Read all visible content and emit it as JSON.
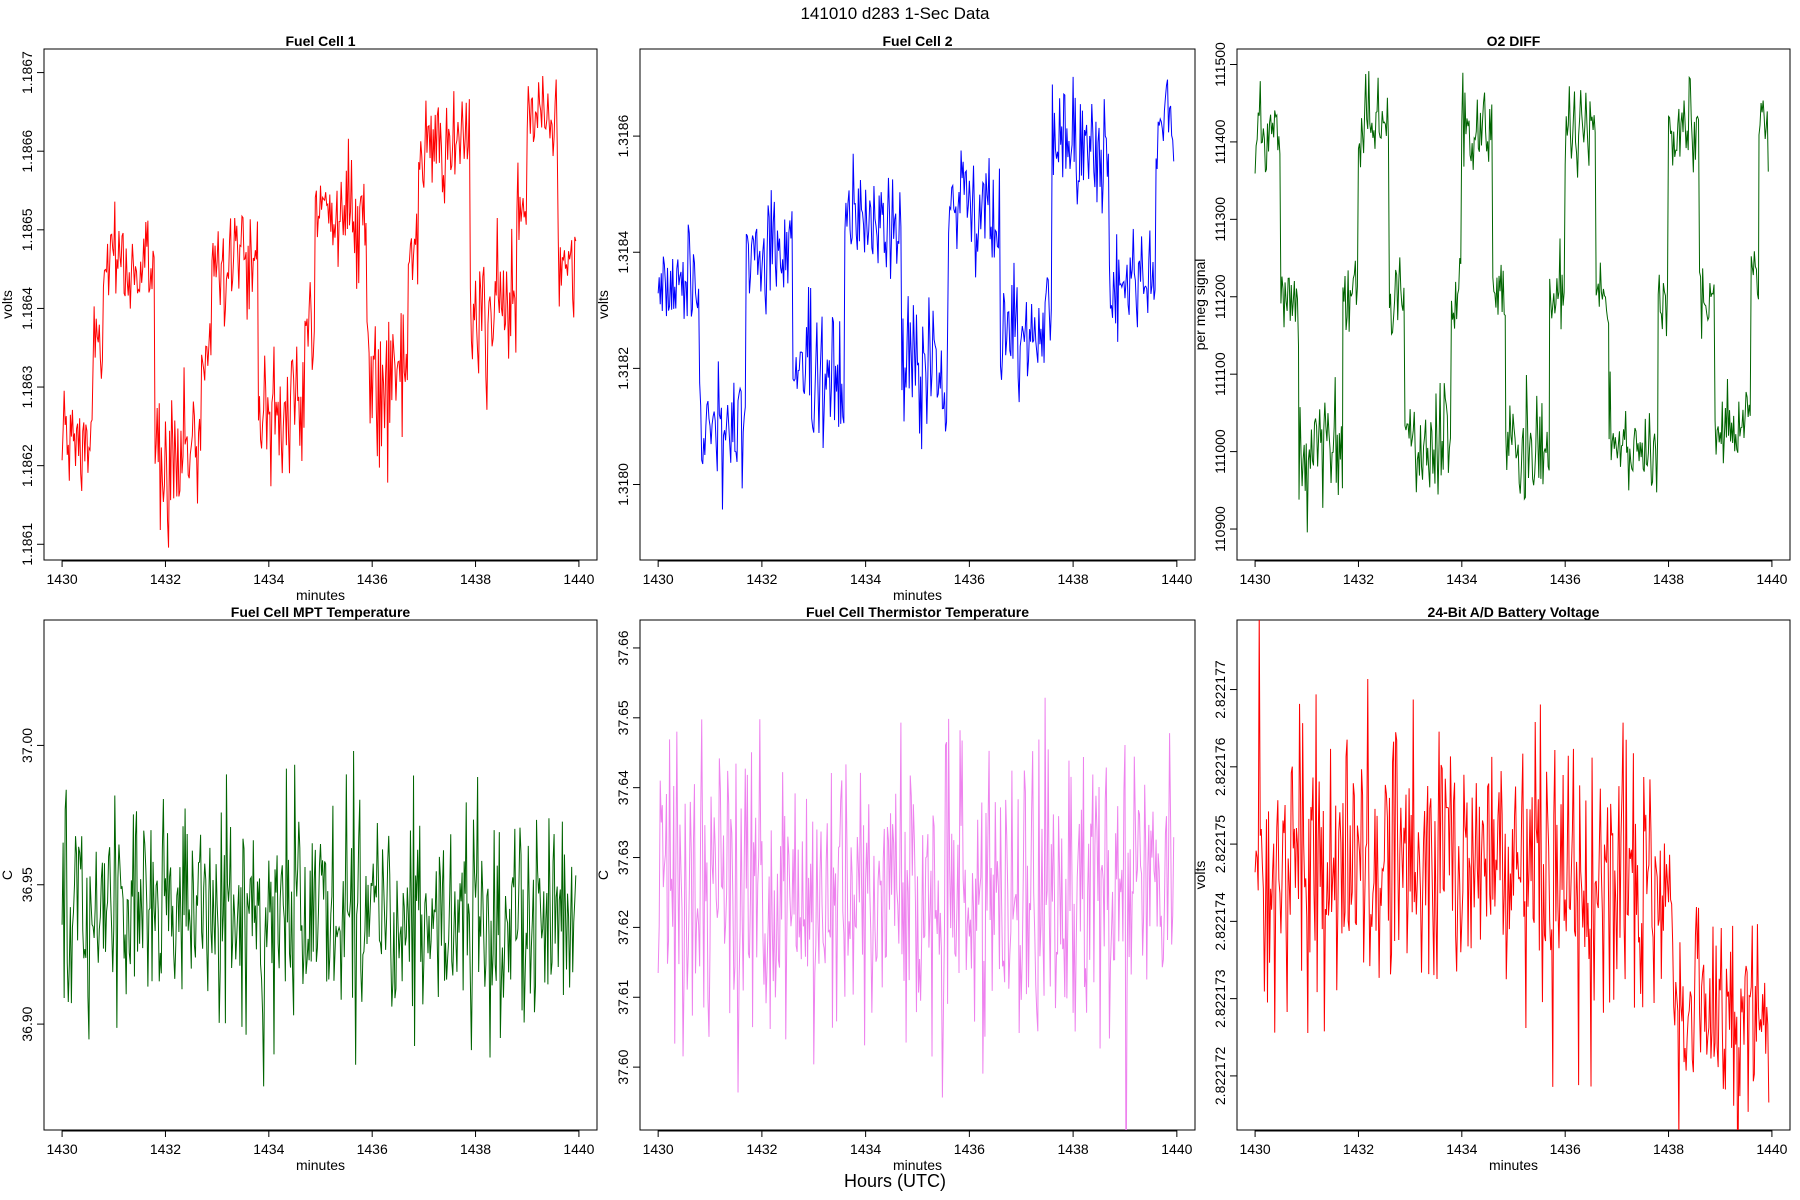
{
  "title": "141010    d283    1-Sec Data",
  "outer_xlabel": "Hours (UTC)",
  "chart_data": [
    {
      "type": "line",
      "title": "Fuel Cell 1",
      "xlabel": "minutes",
      "ylabel": "volts",
      "color": "#ff0000",
      "xlim": [
        1429.65,
        1440.35
      ],
      "ylim": [
        1.18608,
        1.18673
      ],
      "xticks": [
        1430,
        1432,
        1434,
        1436,
        1438,
        1440
      ],
      "xtick_labels": [
        "1430",
        "1432",
        "1434",
        "1436",
        "1438",
        "1440"
      ],
      "yticks": [
        1.1861,
        1.1862,
        1.1863,
        1.1864,
        1.1865,
        1.1866,
        1.1867
      ],
      "ytick_labels": [
        "1.1861",
        "1.1862",
        "1.1863",
        "1.1864",
        "1.1865",
        "1.1866",
        "1.1867"
      ],
      "series": [
        {
          "name": "Fuel Cell 1",
          "step": 0.02,
          "segments": [
            {
              "x0": 1430.0,
              "x1": 1430.6,
              "mean": 1.18623,
              "sd": 3.5e-05
            },
            {
              "x0": 1430.6,
              "x1": 1430.8,
              "mean": 1.18635,
              "sd": 3e-05
            },
            {
              "x0": 1430.8,
              "x1": 1431.8,
              "mean": 1.18645,
              "sd": 3.5e-05
            },
            {
              "x0": 1431.8,
              "x1": 1432.7,
              "mean": 1.18622,
              "sd": 4.5e-05
            },
            {
              "x0": 1432.7,
              "x1": 1432.9,
              "mean": 1.18635,
              "sd": 3e-05
            },
            {
              "x0": 1432.9,
              "x1": 1433.8,
              "mean": 1.18647,
              "sd": 3.5e-05
            },
            {
              "x0": 1433.8,
              "x1": 1434.7,
              "mean": 1.18627,
              "sd": 4e-05
            },
            {
              "x0": 1434.7,
              "x1": 1434.9,
              "mean": 1.1864,
              "sd": 3e-05
            },
            {
              "x0": 1434.9,
              "x1": 1435.9,
              "mean": 1.18652,
              "sd": 3.5e-05
            },
            {
              "x0": 1435.9,
              "x1": 1436.7,
              "mean": 1.18632,
              "sd": 4.5e-05
            },
            {
              "x0": 1436.7,
              "x1": 1436.9,
              "mean": 1.18645,
              "sd": 3e-05
            },
            {
              "x0": 1436.9,
              "x1": 1437.9,
              "mean": 1.1866,
              "sd": 3e-05
            },
            {
              "x0": 1437.9,
              "x1": 1438.8,
              "mean": 1.1864,
              "sd": 4.5e-05
            },
            {
              "x0": 1438.8,
              "x1": 1439.0,
              "mean": 1.18652,
              "sd": 3e-05
            },
            {
              "x0": 1439.0,
              "x1": 1439.6,
              "mean": 1.18665,
              "sd": 3.5e-05
            },
            {
              "x0": 1439.6,
              "x1": 1439.95,
              "mean": 1.18645,
              "sd": 3e-05
            }
          ]
        }
      ]
    },
    {
      "type": "line",
      "title": "Fuel Cell 2",
      "xlabel": "minutes",
      "ylabel": "volts",
      "color": "#0000ff",
      "xlim": [
        1429.65,
        1440.35
      ],
      "ylim": [
        1.31787,
        1.31875
      ],
      "xticks": [
        1430,
        1432,
        1434,
        1436,
        1438,
        1440
      ],
      "xtick_labels": [
        "1430",
        "1432",
        "1434",
        "1436",
        "1438",
        "1440"
      ],
      "yticks": [
        1.318,
        1.3182,
        1.3184,
        1.3186
      ],
      "ytick_labels": [
        "1.3180",
        "1.3182",
        "1.3184",
        "1.3186"
      ],
      "series": [
        {
          "name": "Fuel Cell 2",
          "step": 0.02,
          "segments": [
            {
              "x0": 1430.0,
              "x1": 1430.8,
              "mean": 1.31835,
              "sd": 5e-05
            },
            {
              "x0": 1430.8,
              "x1": 1431.7,
              "mean": 1.3181,
              "sd": 6e-05
            },
            {
              "x0": 1431.7,
              "x1": 1432.6,
              "mean": 1.3184,
              "sd": 5e-05
            },
            {
              "x0": 1432.6,
              "x1": 1433.6,
              "mean": 1.31818,
              "sd": 6e-05
            },
            {
              "x0": 1433.6,
              "x1": 1434.7,
              "mean": 1.31845,
              "sd": 5e-05
            },
            {
              "x0": 1434.7,
              "x1": 1435.6,
              "mean": 1.3182,
              "sd": 6e-05
            },
            {
              "x0": 1435.6,
              "x1": 1436.6,
              "mean": 1.31848,
              "sd": 5e-05
            },
            {
              "x0": 1436.6,
              "x1": 1437.6,
              "mean": 1.31828,
              "sd": 6e-05
            },
            {
              "x0": 1437.6,
              "x1": 1438.7,
              "mean": 1.31858,
              "sd": 5e-05
            },
            {
              "x0": 1438.7,
              "x1": 1439.6,
              "mean": 1.31835,
              "sd": 5e-05
            },
            {
              "x0": 1439.6,
              "x1": 1439.95,
              "mean": 1.31862,
              "sd": 4e-05
            }
          ]
        }
      ]
    },
    {
      "type": "line",
      "title": "O2 DIFF",
      "xlabel": "",
      "ylabel": "per meg signal",
      "color": "#006400",
      "xlim": [
        1429.65,
        1440.35
      ],
      "ylim": [
        110860,
        111520
      ],
      "xticks": [
        1430,
        1432,
        1434,
        1436,
        1438,
        1440
      ],
      "xtick_labels": [
        "1430",
        "1432",
        "1434",
        "1436",
        "1438",
        "1440"
      ],
      "yticks": [
        110900,
        111000,
        111100,
        111200,
        111300,
        111400,
        111500
      ],
      "ytick_labels": [
        "110900",
        "111000",
        "111100",
        "111200",
        "111300",
        "111400",
        "111500"
      ],
      "series": [
        {
          "name": "O2 DIFF",
          "step": 0.02,
          "segments": [
            {
              "x0": 1430.0,
              "x1": 1430.5,
              "mean": 111400,
              "sd": 30
            },
            {
              "x0": 1430.5,
              "x1": 1430.85,
              "mean": 111200,
              "sd": 25
            },
            {
              "x0": 1430.85,
              "x1": 1431.7,
              "mean": 110995,
              "sd": 35
            },
            {
              "x0": 1431.7,
              "x1": 1432.0,
              "mean": 111200,
              "sd": 25
            },
            {
              "x0": 1432.0,
              "x1": 1432.6,
              "mean": 111410,
              "sd": 30
            },
            {
              "x0": 1432.6,
              "x1": 1432.9,
              "mean": 111200,
              "sd": 25
            },
            {
              "x0": 1432.9,
              "x1": 1433.8,
              "mean": 111010,
              "sd": 35
            },
            {
              "x0": 1433.8,
              "x1": 1434.0,
              "mean": 111200,
              "sd": 25
            },
            {
              "x0": 1434.0,
              "x1": 1434.6,
              "mean": 111410,
              "sd": 30
            },
            {
              "x0": 1434.6,
              "x1": 1434.85,
              "mean": 111200,
              "sd": 25
            },
            {
              "x0": 1434.85,
              "x1": 1435.7,
              "mean": 111000,
              "sd": 35
            },
            {
              "x0": 1435.7,
              "x1": 1436.0,
              "mean": 111200,
              "sd": 25
            },
            {
              "x0": 1436.0,
              "x1": 1436.6,
              "mean": 111410,
              "sd": 30
            },
            {
              "x0": 1436.6,
              "x1": 1436.85,
              "mean": 111200,
              "sd": 25
            },
            {
              "x0": 1436.85,
              "x1": 1437.8,
              "mean": 111000,
              "sd": 35
            },
            {
              "x0": 1437.8,
              "x1": 1438.0,
              "mean": 111200,
              "sd": 25
            },
            {
              "x0": 1438.0,
              "x1": 1438.6,
              "mean": 111420,
              "sd": 30
            },
            {
              "x0": 1438.6,
              "x1": 1438.9,
              "mean": 111200,
              "sd": 25
            },
            {
              "x0": 1438.9,
              "x1": 1439.6,
              "mean": 111030,
              "sd": 30
            },
            {
              "x0": 1439.6,
              "x1": 1439.75,
              "mean": 111220,
              "sd": 25
            },
            {
              "x0": 1439.75,
              "x1": 1439.95,
              "mean": 111420,
              "sd": 25
            }
          ]
        }
      ]
    },
    {
      "type": "line",
      "title": "Fuel Cell MPT Temperature",
      "xlabel": "minutes",
      "ylabel": "C",
      "color": "#006400",
      "xlim": [
        1429.65,
        1440.35
      ],
      "ylim": [
        36.862,
        37.045
      ],
      "xticks": [
        1430,
        1432,
        1434,
        1436,
        1438,
        1440
      ],
      "xtick_labels": [
        "1430",
        "1432",
        "1434",
        "1436",
        "1438",
        "1440"
      ],
      "yticks": [
        36.9,
        36.95,
        37.0
      ],
      "ytick_labels": [
        "36.90",
        "36.95",
        "37.00"
      ],
      "series": [
        {
          "name": "Fuel Cell MPT Temperature",
          "step": 0.02,
          "segments": [
            {
              "x0": 1430.0,
              "x1": 1439.95,
              "mean": 36.94,
              "sd": 0.02
            }
          ]
        }
      ]
    },
    {
      "type": "line",
      "title": "Fuel Cell Thermistor Temperature",
      "xlabel": "minutes",
      "ylabel": "C",
      "color": "#ee82ee",
      "xlim": [
        1429.65,
        1440.35
      ],
      "ylim": [
        37.591,
        37.664
      ],
      "xticks": [
        1430,
        1432,
        1434,
        1436,
        1438,
        1440
      ],
      "xtick_labels": [
        "1430",
        "1432",
        "1434",
        "1436",
        "1438",
        "1440"
      ],
      "yticks": [
        37.6,
        37.61,
        37.62,
        37.63,
        37.64,
        37.65,
        37.66
      ],
      "ytick_labels": [
        "37.60",
        "37.61",
        "37.62",
        "37.63",
        "37.64",
        "37.65",
        "37.66"
      ],
      "series": [
        {
          "name": "Fuel Cell Thermistor Temperature",
          "step": 0.02,
          "segments": [
            {
              "x0": 1430.0,
              "x1": 1439.95,
              "mean": 37.625,
              "sd": 0.011
            }
          ]
        }
      ]
    },
    {
      "type": "line",
      "title": "24-Bit A/D Battery Voltage",
      "xlabel": "minutes",
      "ylabel": "volts",
      "color": "#ff0000",
      "xlim": [
        1429.65,
        1440.35
      ],
      "ylim": [
        2.8221713,
        2.8221779
      ],
      "xticks": [
        1430,
        1432,
        1434,
        1436,
        1438,
        1440
      ],
      "xtick_labels": [
        "1430",
        "1432",
        "1434",
        "1436",
        "1438",
        "1440"
      ],
      "yticks": [
        2.822172,
        2.822173,
        2.822174,
        2.822175,
        2.822176,
        2.822177
      ],
      "ytick_labels": [
        "2.822172",
        "2.822173",
        "2.822174",
        "2.822175",
        "2.822176",
        "2.822177"
      ],
      "series": [
        {
          "name": "24-Bit A/D Battery Voltage",
          "step": 0.02,
          "segments": [
            {
              "x0": 1430.0,
              "x1": 1432.0,
              "mean": 2.8221746,
              "sd": 9e-07
            },
            {
              "x0": 1432.0,
              "x1": 1436.0,
              "mean": 2.8221748,
              "sd": 9e-07
            },
            {
              "x0": 1436.0,
              "x1": 1438.1,
              "mean": 2.8221744,
              "sd": 9e-07
            },
            {
              "x0": 1438.1,
              "x1": 1439.95,
              "mean": 2.8221729,
              "sd": 7e-07
            }
          ]
        }
      ]
    }
  ]
}
